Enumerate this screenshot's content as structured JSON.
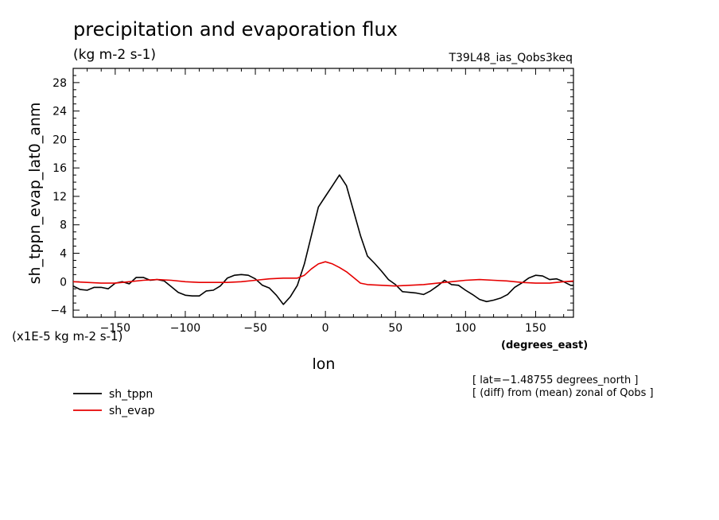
{
  "chart_data": {
    "type": "line",
    "title": "precipitation and evaporation flux",
    "units": "(kg m-2 s-1)",
    "experiment": "T39L48_ias_Qobs3keq",
    "exponent_label": "(x1E-5 kg m-2 s-1)",
    "xlabel": "lon",
    "xunits": "(degrees_east)",
    "ylabel": "sh_tppn_evap_lat0_anm",
    "xlim": [
      -180,
      177
    ],
    "ylim": [
      -5,
      30
    ],
    "xticks": [
      -150,
      -100,
      -50,
      0,
      50,
      100,
      150
    ],
    "xtick_labels": [
      "−150",
      "−100",
      "−50",
      "0",
      "50",
      "100",
      "150"
    ],
    "yticks": [
      -4,
      0,
      4,
      8,
      12,
      16,
      20,
      24,
      28
    ],
    "ytick_labels": [
      "−4",
      "0",
      "4",
      "8",
      "12",
      "16",
      "20",
      "24",
      "28"
    ],
    "grid": false,
    "legend_position": "bottom-left",
    "notes": [
      "[ lat=−1.48755 degrees_north ]",
      "[ (diff) from (mean) zonal of Qobs ]"
    ],
    "series": [
      {
        "name": "sh_tppn",
        "color": "#000000",
        "x": [
          -180,
          -175,
          -170,
          -165,
          -160,
          -155,
          -150,
          -145,
          -140,
          -135,
          -130,
          -125,
          -120,
          -115,
          -110,
          -105,
          -100,
          -95,
          -90,
          -85,
          -80,
          -75,
          -70,
          -65,
          -60,
          -55,
          -50,
          -45,
          -40,
          -35,
          -30,
          -25,
          -20,
          -15,
          -10,
          -5,
          0,
          5,
          10,
          15,
          20,
          25,
          30,
          35,
          40,
          45,
          50,
          55,
          60,
          65,
          70,
          75,
          80,
          85,
          90,
          95,
          100,
          105,
          110,
          115,
          120,
          125,
          130,
          135,
          140,
          145,
          150,
          155,
          160,
          165,
          170,
          175,
          177
        ],
        "y": [
          -0.6,
          -1.1,
          -1.2,
          -0.8,
          -0.8,
          -1.0,
          -0.2,
          0.0,
          -0.3,
          0.6,
          0.6,
          0.2,
          0.3,
          0.1,
          -0.7,
          -1.5,
          -1.9,
          -2.0,
          -2.0,
          -1.3,
          -1.2,
          -0.6,
          0.5,
          0.9,
          1.0,
          0.9,
          0.4,
          -0.5,
          -0.9,
          -1.9,
          -3.2,
          -2.1,
          -0.5,
          2.5,
          6.5,
          10.5,
          12.0,
          13.5,
          15.0,
          13.5,
          10.0,
          6.5,
          3.6,
          2.6,
          1.5,
          0.3,
          -0.4,
          -1.4,
          -1.5,
          -1.6,
          -1.8,
          -1.3,
          -0.6,
          0.2,
          -0.4,
          -0.5,
          -1.2,
          -1.8,
          -2.5,
          -2.8,
          -2.6,
          -2.3,
          -1.8,
          -0.8,
          -0.2,
          0.5,
          0.9,
          0.8,
          0.3,
          0.4,
          0.0,
          -0.5,
          -0.5
        ]
      },
      {
        "name": "sh_evap",
        "color": "#e60000",
        "x": [
          -180,
          -170,
          -160,
          -150,
          -140,
          -130,
          -120,
          -110,
          -100,
          -90,
          -80,
          -70,
          -60,
          -50,
          -40,
          -30,
          -20,
          -15,
          -10,
          -5,
          0,
          5,
          10,
          15,
          20,
          25,
          30,
          40,
          50,
          60,
          70,
          80,
          90,
          100,
          110,
          120,
          130,
          140,
          150,
          160,
          170,
          177
        ],
        "y": [
          0.0,
          -0.1,
          -0.2,
          -0.2,
          0.0,
          0.2,
          0.3,
          0.2,
          0.0,
          -0.1,
          -0.1,
          -0.1,
          0.0,
          0.2,
          0.4,
          0.5,
          0.5,
          0.9,
          1.8,
          2.5,
          2.8,
          2.5,
          2.0,
          1.4,
          0.6,
          -0.2,
          -0.4,
          -0.5,
          -0.6,
          -0.5,
          -0.4,
          -0.2,
          0.0,
          0.2,
          0.3,
          0.2,
          0.1,
          -0.1,
          -0.2,
          -0.2,
          0.0,
          0.1
        ]
      }
    ]
  }
}
